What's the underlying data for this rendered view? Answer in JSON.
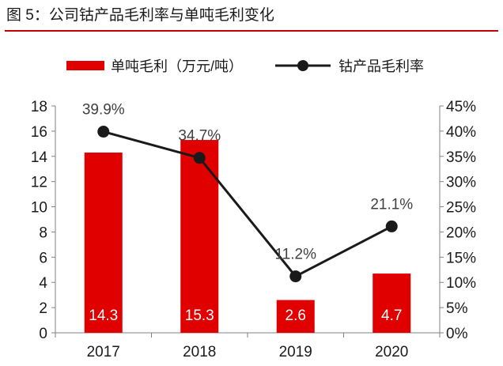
{
  "title": "图 5：公司钴产品毛利率与单吨毛利变化",
  "chart_data": {
    "type": "bar",
    "categories": [
      "2017",
      "2018",
      "2019",
      "2020"
    ],
    "series": [
      {
        "name": "单吨毛利（万元/吨）",
        "type": "bar",
        "axis": "left",
        "color": "#e00000",
        "values": [
          14.3,
          15.3,
          2.6,
          4.7
        ],
        "labels": [
          "14.3",
          "15.3",
          "2.6",
          "4.7"
        ]
      },
      {
        "name": "钴产品毛利率",
        "type": "line",
        "axis": "right",
        "color": "#1a1a1a",
        "values": [
          39.9,
          34.7,
          11.2,
          21.1
        ],
        "labels": [
          "39.9%",
          "34.7%",
          "11.2%",
          "21.1%"
        ]
      }
    ],
    "y_left": {
      "min": 0,
      "max": 18,
      "ticks": [
        "0",
        "2",
        "4",
        "6",
        "8",
        "10",
        "12",
        "14",
        "16",
        "18"
      ]
    },
    "y_right": {
      "min": 0,
      "max": 45,
      "unit": "%",
      "ticks": [
        "0%",
        "5%",
        "10%",
        "15%",
        "20%",
        "25%",
        "30%",
        "35%",
        "40%",
        "45%"
      ]
    },
    "grid": false,
    "legend_position": "top"
  }
}
